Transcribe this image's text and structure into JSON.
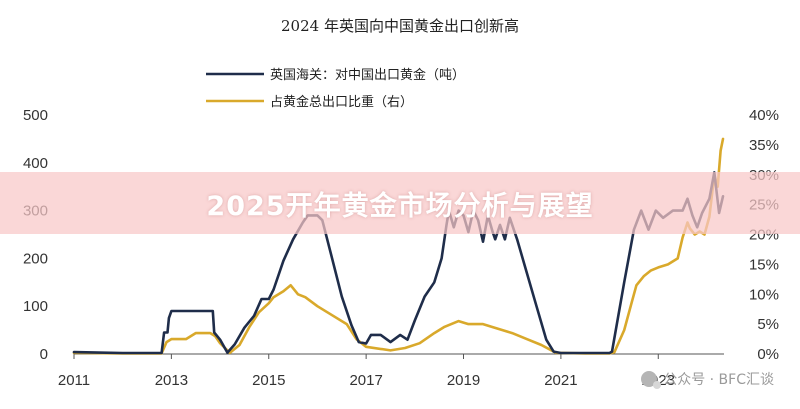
{
  "banner": {
    "text": "2025开年黄金市场分析与展望"
  },
  "watermark": {
    "text": "公众号 · BFC汇谈",
    "icon": "wechat-icon"
  },
  "colors": {
    "series_export": "#1f2d4a",
    "series_share": "#d9a92b",
    "axis": "#555555"
  },
  "chart_data": {
    "type": "line",
    "title": "2024 年英国向中国黄金出口创新高",
    "legend_position": "top-center",
    "grid": false,
    "x_axis": {
      "range": [
        2011.0,
        2024.35
      ],
      "ticks": [
        "2011",
        "2013",
        "2015",
        "2017",
        "2019",
        "2021",
        "2023"
      ],
      "tick_values": [
        2011,
        2013,
        2015,
        2017,
        2019,
        2021,
        2023
      ]
    },
    "y_left": {
      "range": [
        0,
        500
      ],
      "ticks": [
        "0",
        "100",
        "200",
        "300",
        "400",
        "500"
      ],
      "tick_values": [
        0,
        100,
        200,
        300,
        400,
        500
      ]
    },
    "y_right": {
      "range": [
        0,
        40
      ],
      "ticks": [
        "0%",
        "5%",
        "10%",
        "15%",
        "20%",
        "25%",
        "30%",
        "35%",
        "40%"
      ],
      "tick_values": [
        0,
        5,
        10,
        15,
        20,
        25,
        30,
        35,
        40
      ]
    },
    "series": [
      {
        "name": "英国海关：对中国出口黄金（吨）",
        "axis": "left",
        "points": [
          [
            2011.0,
            4
          ],
          [
            2011.5,
            3
          ],
          [
            2012.0,
            2
          ],
          [
            2012.8,
            2
          ],
          [
            2012.85,
            45
          ],
          [
            2012.92,
            45
          ],
          [
            2012.95,
            75
          ],
          [
            2013.0,
            90
          ],
          [
            2013.2,
            90
          ],
          [
            2013.5,
            90
          ],
          [
            2013.85,
            90
          ],
          [
            2013.88,
            45
          ],
          [
            2014.0,
            30
          ],
          [
            2014.15,
            3
          ],
          [
            2014.3,
            20
          ],
          [
            2014.5,
            55
          ],
          [
            2014.7,
            80
          ],
          [
            2014.85,
            115
          ],
          [
            2015.0,
            115
          ],
          [
            2015.1,
            135
          ],
          [
            2015.3,
            195
          ],
          [
            2015.5,
            240
          ],
          [
            2015.7,
            275
          ],
          [
            2015.8,
            290
          ],
          [
            2016.0,
            290
          ],
          [
            2016.1,
            280
          ],
          [
            2016.3,
            200
          ],
          [
            2016.5,
            120
          ],
          [
            2016.7,
            60
          ],
          [
            2016.85,
            25
          ],
          [
            2017.0,
            22
          ],
          [
            2017.1,
            40
          ],
          [
            2017.3,
            40
          ],
          [
            2017.5,
            25
          ],
          [
            2017.7,
            40
          ],
          [
            2017.85,
            30
          ],
          [
            2018.0,
            70
          ],
          [
            2018.2,
            120
          ],
          [
            2018.4,
            150
          ],
          [
            2018.55,
            200
          ],
          [
            2018.65,
            270
          ],
          [
            2018.7,
            300
          ],
          [
            2018.8,
            265
          ],
          [
            2018.9,
            300
          ],
          [
            2019.0,
            290
          ],
          [
            2019.1,
            255
          ],
          [
            2019.2,
            300
          ],
          [
            2019.3,
            280
          ],
          [
            2019.4,
            235
          ],
          [
            2019.5,
            290
          ],
          [
            2019.6,
            255
          ],
          [
            2019.65,
            240
          ],
          [
            2019.75,
            270
          ],
          [
            2019.85,
            240
          ],
          [
            2019.95,
            285
          ],
          [
            2020.1,
            240
          ],
          [
            2020.3,
            170
          ],
          [
            2020.5,
            100
          ],
          [
            2020.7,
            30
          ],
          [
            2020.85,
            5
          ],
          [
            2021.0,
            2
          ],
          [
            2021.5,
            2
          ],
          [
            2022.0,
            2
          ],
          [
            2022.05,
            5
          ],
          [
            2022.3,
            150
          ],
          [
            2022.5,
            260
          ],
          [
            2022.65,
            300
          ],
          [
            2022.8,
            260
          ],
          [
            2022.95,
            300
          ],
          [
            2023.1,
            285
          ],
          [
            2023.3,
            300
          ],
          [
            2023.5,
            300
          ],
          [
            2023.6,
            325
          ],
          [
            2023.7,
            290
          ],
          [
            2023.8,
            265
          ],
          [
            2023.9,
            295
          ],
          [
            2024.05,
            325
          ],
          [
            2024.15,
            380
          ],
          [
            2024.25,
            295
          ],
          [
            2024.33,
            330
          ]
        ]
      },
      {
        "name": "占黄金总出口比重（右）",
        "axis": "right",
        "points": [
          [
            2011.0,
            0.2
          ],
          [
            2012.0,
            0.1
          ],
          [
            2012.8,
            0.1
          ],
          [
            2012.9,
            2.0
          ],
          [
            2013.0,
            2.5
          ],
          [
            2013.3,
            2.5
          ],
          [
            2013.5,
            3.5
          ],
          [
            2013.8,
            3.5
          ],
          [
            2013.9,
            3.0
          ],
          [
            2014.0,
            1.8
          ],
          [
            2014.2,
            0.2
          ],
          [
            2014.4,
            1.5
          ],
          [
            2014.6,
            4.5
          ],
          [
            2014.8,
            7.0
          ],
          [
            2015.0,
            8.5
          ],
          [
            2015.1,
            9.5
          ],
          [
            2015.3,
            10.5
          ],
          [
            2015.45,
            11.5
          ],
          [
            2015.6,
            10.0
          ],
          [
            2015.75,
            9.5
          ],
          [
            2016.0,
            8.0
          ],
          [
            2016.3,
            6.5
          ],
          [
            2016.6,
            5.0
          ],
          [
            2016.8,
            2.5
          ],
          [
            2017.0,
            1.2
          ],
          [
            2017.5,
            0.6
          ],
          [
            2017.8,
            1.0
          ],
          [
            2018.1,
            1.8
          ],
          [
            2018.4,
            3.5
          ],
          [
            2018.6,
            4.5
          ],
          [
            2018.9,
            5.5
          ],
          [
            2019.1,
            5.0
          ],
          [
            2019.4,
            5.0
          ],
          [
            2019.6,
            4.5
          ],
          [
            2019.8,
            4.0
          ],
          [
            2020.0,
            3.5
          ],
          [
            2020.3,
            2.5
          ],
          [
            2020.6,
            1.5
          ],
          [
            2020.9,
            0.2
          ],
          [
            2021.5,
            0.1
          ],
          [
            2022.0,
            0.1
          ],
          [
            2022.1,
            0.3
          ],
          [
            2022.3,
            4.0
          ],
          [
            2022.45,
            8.5
          ],
          [
            2022.55,
            11.5
          ],
          [
            2022.7,
            13.0
          ],
          [
            2022.85,
            14.0
          ],
          [
            2023.0,
            14.5
          ],
          [
            2023.2,
            15.0
          ],
          [
            2023.4,
            16.0
          ],
          [
            2023.5,
            19.5
          ],
          [
            2023.6,
            22.0
          ],
          [
            2023.65,
            21.0
          ],
          [
            2023.75,
            20.0
          ],
          [
            2023.85,
            20.5
          ],
          [
            2023.95,
            20.0
          ],
          [
            2024.05,
            23.0
          ],
          [
            2024.15,
            30.0
          ],
          [
            2024.22,
            28.0
          ],
          [
            2024.28,
            34.0
          ],
          [
            2024.33,
            36.0
          ]
        ]
      }
    ]
  }
}
